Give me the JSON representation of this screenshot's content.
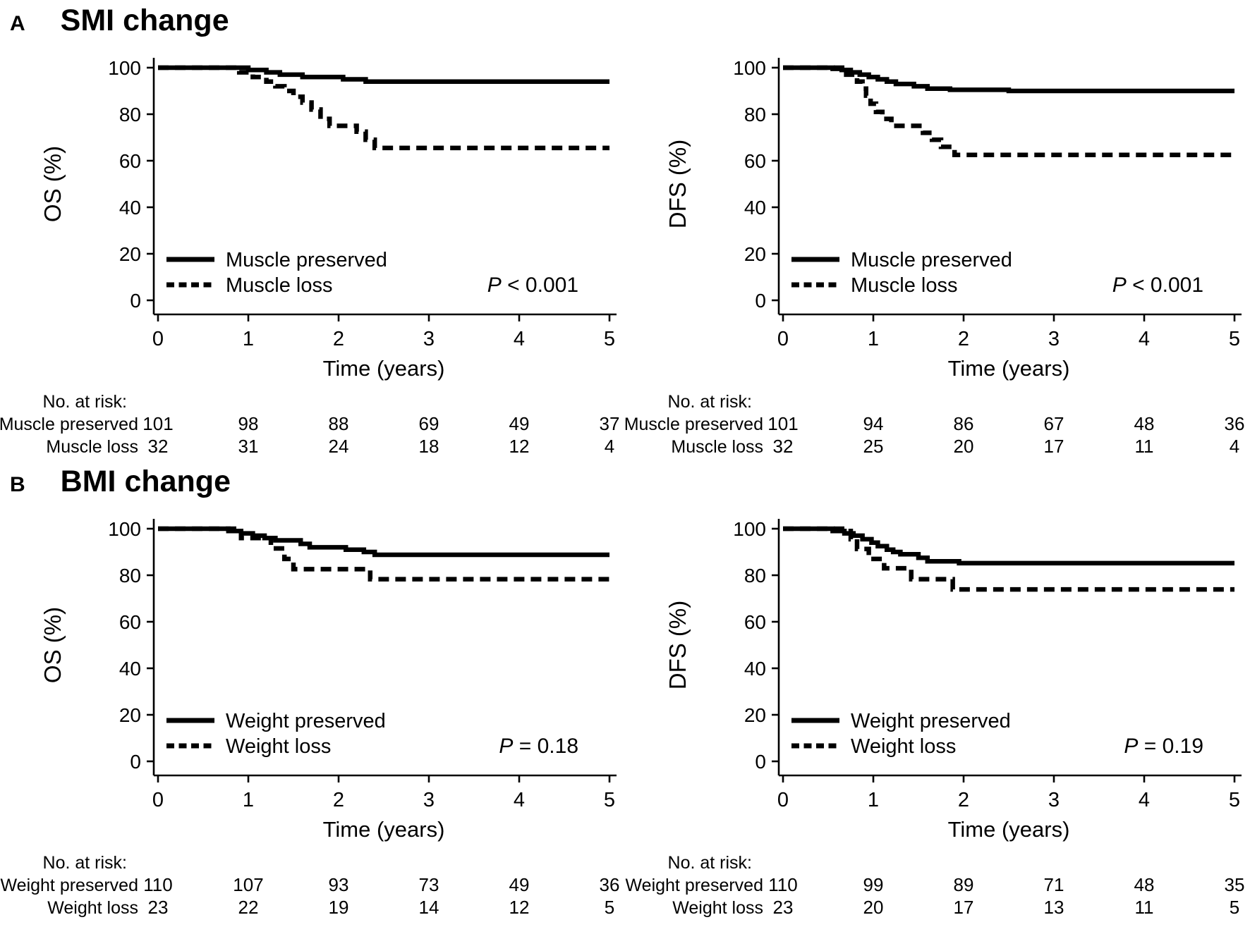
{
  "colors": {
    "ink": "#000000",
    "background": "#ffffff"
  },
  "sections": [
    {
      "label": "A",
      "title": "SMI change"
    },
    {
      "label": "B",
      "title": "BMI change"
    }
  ],
  "chart_data": [
    {
      "type": "line",
      "style": "kaplan-meier-step",
      "panel": "A",
      "ylabel": "OS (%)",
      "xlabel": "Time (years)",
      "xlim": [
        0,
        5
      ],
      "ylim": [
        0,
        100
      ],
      "x_ticks": [
        0,
        1,
        2,
        3,
        4,
        5
      ],
      "y_ticks": [
        0,
        20,
        40,
        60,
        80,
        100
      ],
      "p_label": "P < 0.001",
      "legend_position": "lower-left-inside",
      "series": [
        {
          "name": "Muscle preserved",
          "line": "solid",
          "steps": [
            [
              0,
              100
            ],
            [
              1.0,
              99
            ],
            [
              1.2,
              98
            ],
            [
              1.35,
              97
            ],
            [
              1.6,
              96
            ],
            [
              2.05,
              95
            ],
            [
              2.3,
              94
            ],
            [
              5,
              94
            ]
          ]
        },
        {
          "name": "Muscle loss",
          "line": "dashed",
          "steps": [
            [
              0,
              100
            ],
            [
              0.9,
              98
            ],
            [
              1.05,
              96
            ],
            [
              1.2,
              94
            ],
            [
              1.3,
              92
            ],
            [
              1.4,
              90
            ],
            [
              1.5,
              87.5
            ],
            [
              1.6,
              85
            ],
            [
              1.7,
              82
            ],
            [
              1.8,
              78
            ],
            [
              1.9,
              75
            ],
            [
              2.2,
              72.5
            ],
            [
              2.3,
              69
            ],
            [
              2.4,
              65.5
            ],
            [
              5,
              65.5
            ]
          ]
        }
      ],
      "risk_table": {
        "title": "No. at risk:",
        "times": [
          0,
          1,
          2,
          3,
          4,
          5
        ],
        "rows": [
          {
            "label": "Muscle preserved",
            "values": [
              101,
              98,
              88,
              69,
              49,
              37
            ]
          },
          {
            "label": "Muscle loss",
            "values": [
              32,
              31,
              24,
              18,
              12,
              4
            ]
          }
        ]
      }
    },
    {
      "type": "line",
      "style": "kaplan-meier-step",
      "panel": "A",
      "ylabel": "DFS (%)",
      "xlabel": "Time (years)",
      "xlim": [
        0,
        5
      ],
      "ylim": [
        0,
        100
      ],
      "x_ticks": [
        0,
        1,
        2,
        3,
        4,
        5
      ],
      "y_ticks": [
        0,
        20,
        40,
        60,
        80,
        100
      ],
      "p_label": "P < 0.001",
      "legend_position": "lower-left-inside",
      "series": [
        {
          "name": "Muscle preserved",
          "line": "solid",
          "steps": [
            [
              0,
              100
            ],
            [
              0.55,
              99.5
            ],
            [
              0.65,
              99
            ],
            [
              0.75,
              98
            ],
            [
              0.85,
              97
            ],
            [
              0.95,
              96
            ],
            [
              1.05,
              95
            ],
            [
              1.15,
              94
            ],
            [
              1.25,
              93
            ],
            [
              1.45,
              92
            ],
            [
              1.6,
              91
            ],
            [
              1.85,
              90.5
            ],
            [
              2.5,
              90
            ],
            [
              5,
              90
            ]
          ]
        },
        {
          "name": "Muscle loss",
          "line": "dashed",
          "steps": [
            [
              0,
              100
            ],
            [
              0.7,
              97
            ],
            [
              0.82,
              94
            ],
            [
              0.88,
              91
            ],
            [
              0.92,
              88
            ],
            [
              0.97,
              84.5
            ],
            [
              1.03,
              81
            ],
            [
              1.1,
              78
            ],
            [
              1.2,
              75
            ],
            [
              1.55,
              72
            ],
            [
              1.65,
              69
            ],
            [
              1.75,
              66
            ],
            [
              1.9,
              62.5
            ],
            [
              5,
              62.5
            ]
          ]
        }
      ],
      "risk_table": {
        "title": "No. at risk:",
        "times": [
          0,
          1,
          2,
          3,
          4,
          5
        ],
        "rows": [
          {
            "label": "Muscle preserved",
            "values": [
              101,
              94,
              86,
              67,
              48,
              36
            ]
          },
          {
            "label": "Muscle loss",
            "values": [
              32,
              25,
              20,
              17,
              11,
              4
            ]
          }
        ]
      }
    },
    {
      "type": "line",
      "style": "kaplan-meier-step",
      "panel": "B",
      "ylabel": "OS (%)",
      "xlabel": "Time (years)",
      "xlim": [
        0,
        5
      ],
      "ylim": [
        0,
        100
      ],
      "x_ticks": [
        0,
        1,
        2,
        3,
        4,
        5
      ],
      "y_ticks": [
        0,
        20,
        40,
        60,
        80,
        100
      ],
      "p_label": "P = 0.18",
      "legend_position": "lower-left-inside",
      "series": [
        {
          "name": "Weight preserved",
          "line": "solid",
          "steps": [
            [
              0,
              100
            ],
            [
              0.78,
              99
            ],
            [
              0.92,
              98
            ],
            [
              1.05,
              97
            ],
            [
              1.18,
              96
            ],
            [
              1.3,
              95
            ],
            [
              1.58,
              93.5
            ],
            [
              1.68,
              92
            ],
            [
              2.08,
              91
            ],
            [
              2.28,
              90
            ],
            [
              2.4,
              88.8
            ],
            [
              5,
              88.8
            ]
          ]
        },
        {
          "name": "Weight loss",
          "line": "dashed",
          "steps": [
            [
              0,
              100
            ],
            [
              0.92,
              96
            ],
            [
              1.25,
              91.5
            ],
            [
              1.4,
              87
            ],
            [
              1.5,
              82.6
            ],
            [
              2.35,
              78.3
            ],
            [
              5,
              78.3
            ]
          ]
        }
      ],
      "risk_table": {
        "title": "No. at risk:",
        "times": [
          0,
          1,
          2,
          3,
          4,
          5
        ],
        "rows": [
          {
            "label": "Weight preserved",
            "values": [
              110,
              107,
              93,
              73,
              49,
              36
            ]
          },
          {
            "label": "Weight loss",
            "values": [
              23,
              22,
              19,
              14,
              12,
              5
            ]
          }
        ]
      }
    },
    {
      "type": "line",
      "style": "kaplan-meier-step",
      "panel": "B",
      "ylabel": "DFS (%)",
      "xlabel": "Time (years)",
      "xlim": [
        0,
        5
      ],
      "ylim": [
        0,
        100
      ],
      "x_ticks": [
        0,
        1,
        2,
        3,
        4,
        5
      ],
      "y_ticks": [
        0,
        20,
        40,
        60,
        80,
        100
      ],
      "p_label": "P = 0.19",
      "legend_position": "lower-left-inside",
      "series": [
        {
          "name": "Weight preserved",
          "line": "solid",
          "steps": [
            [
              0,
              100
            ],
            [
              0.55,
              99
            ],
            [
              0.68,
              98
            ],
            [
              0.78,
              97
            ],
            [
              0.88,
              95.5
            ],
            [
              0.98,
              94
            ],
            [
              1.05,
              92.5
            ],
            [
              1.15,
              91
            ],
            [
              1.22,
              90
            ],
            [
              1.3,
              89
            ],
            [
              1.5,
              87.5
            ],
            [
              1.6,
              86
            ],
            [
              1.95,
              85.2
            ],
            [
              5,
              85.2
            ]
          ]
        },
        {
          "name": "Weight loss",
          "line": "dashed",
          "steps": [
            [
              0,
              100
            ],
            [
              0.75,
              95.5
            ],
            [
              0.82,
              91.3
            ],
            [
              0.95,
              87
            ],
            [
              1.12,
              83
            ],
            [
              1.42,
              78.3
            ],
            [
              1.88,
              73.9
            ],
            [
              5,
              73.9
            ]
          ]
        }
      ],
      "risk_table": {
        "title": "No. at risk:",
        "times": [
          0,
          1,
          2,
          3,
          4,
          5
        ],
        "rows": [
          {
            "label": "Weight preserved",
            "values": [
              110,
              99,
              89,
              71,
              48,
              35
            ]
          },
          {
            "label": "Weight loss",
            "values": [
              23,
              20,
              17,
              13,
              11,
              5
            ]
          }
        ]
      }
    }
  ]
}
